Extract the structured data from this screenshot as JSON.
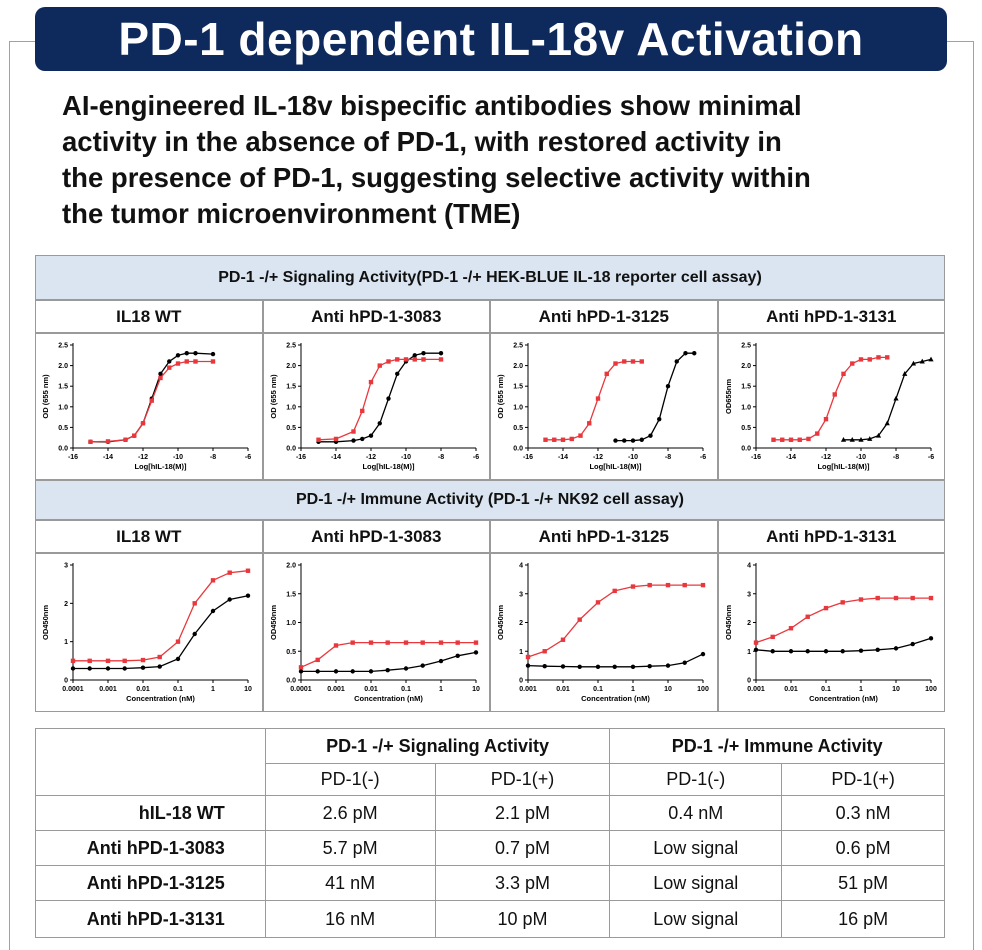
{
  "header": {
    "title": "PD-1 dependent IL-18v Activation",
    "subtitle": [
      "AI-engineered IL-18v bispecific antibodies show minimal",
      "activity in the absence of PD-1, with restored activity in",
      "the presence of PD-1, suggesting selective activity within",
      "the tumor microenvironment (TME)"
    ]
  },
  "panels": [
    {
      "title": "PD-1 -/+ Signaling Activity(PD-1 -/+ HEK-BLUE IL-18 reporter cell assay)",
      "columns": [
        "IL18 WT",
        "Anti hPD-1-3083",
        "Anti hPD-1-3125",
        "Anti hPD-1-3131"
      ],
      "charts": [
        {
          "type": "line",
          "xlabel": "Log[hIL-18(M)]",
          "ylabel": "OD (655 nm)",
          "xlim": [
            -16,
            -6
          ],
          "ylim": [
            0,
            2.5
          ],
          "xticks": [
            -16,
            -14,
            -12,
            -10,
            -8,
            -6
          ],
          "yticks": [
            {
              "value": 0,
              "label": "0.0"
            },
            0.5,
            {
              "value": 1,
              "label": "1.0"
            },
            1.5,
            {
              "value": 2,
              "label": "2.0"
            },
            2.5
          ],
          "series": [
            {
              "color": "#000000",
              "marker": "circle",
              "x": [
                -15,
                -14,
                -13,
                -12.5,
                -12,
                -11.5,
                -11,
                -10.5,
                -10,
                -9.5,
                -9,
                -8
              ],
              "values": [
                0.15,
                0.15,
                0.2,
                0.3,
                0.6,
                1.2,
                1.8,
                2.1,
                2.25,
                2.3,
                2.3,
                2.28
              ]
            },
            {
              "color": "#e8383d",
              "marker": "square",
              "x": [
                -15,
                -14,
                -13,
                -12.5,
                -12,
                -11.5,
                -11,
                -10.5,
                -10,
                -9.5,
                -9,
                -8
              ],
              "values": [
                0.15,
                0.16,
                0.2,
                0.3,
                0.6,
                1.15,
                1.7,
                1.95,
                2.05,
                2.1,
                2.1,
                2.1
              ]
            }
          ]
        },
        {
          "type": "line",
          "xlabel": "Log[hIL-18(M)]",
          "ylabel": "OD (655 nm)",
          "xlim": [
            -16,
            -6
          ],
          "ylim": [
            0,
            2.5
          ],
          "xticks": [
            -16,
            -14,
            -12,
            -10,
            -8,
            -6
          ],
          "yticks": [
            {
              "value": 0,
              "label": "0.0"
            },
            0.5,
            {
              "value": 1,
              "label": "1.0"
            },
            1.5,
            {
              "value": 2,
              "label": "2.0"
            },
            2.5
          ],
          "series": [
            {
              "color": "#000000",
              "marker": "circle",
              "x": [
                -15,
                -14,
                -13,
                -12.5,
                -12,
                -11.5,
                -11,
                -10.5,
                -10,
                -9.5,
                -9,
                -8
              ],
              "values": [
                0.15,
                0.15,
                0.18,
                0.22,
                0.3,
                0.6,
                1.2,
                1.8,
                2.1,
                2.25,
                2.3,
                2.3
              ]
            },
            {
              "color": "#e8383d",
              "marker": "square",
              "x": [
                -15,
                -14,
                -13,
                -12.5,
                -12,
                -11.5,
                -11,
                -10.5,
                -10,
                -9.5,
                -9,
                -8
              ],
              "values": [
                0.2,
                0.22,
                0.4,
                0.9,
                1.6,
                2.0,
                2.1,
                2.15,
                2.15,
                2.15,
                2.15,
                2.15
              ]
            }
          ]
        },
        {
          "type": "line",
          "xlabel": "Log[hIL-18(M)]",
          "ylabel": "OD (655 nm)",
          "xlim": [
            -16,
            -6
          ],
          "ylim": [
            0,
            2.5
          ],
          "xticks": [
            -16,
            -14,
            -12,
            -10,
            -8,
            -6
          ],
          "yticks": [
            {
              "value": 0,
              "label": "0.0"
            },
            0.5,
            {
              "value": 1,
              "label": "1.0"
            },
            1.5,
            {
              "value": 2,
              "label": "2.0"
            },
            2.5
          ],
          "series": [
            {
              "color": "#000000",
              "marker": "circle",
              "x": [
                -11,
                -10.5,
                -10,
                -9.5,
                -9,
                -8.5,
                -8,
                -7.5,
                -7,
                -6.5
              ],
              "values": [
                0.18,
                0.18,
                0.18,
                0.2,
                0.3,
                0.7,
                1.5,
                2.1,
                2.3,
                2.3
              ]
            },
            {
              "color": "#e8383d",
              "marker": "square",
              "x": [
                -15,
                -14.5,
                -14,
                -13.5,
                -13,
                -12.5,
                -12,
                -11.5,
                -11,
                -10.5,
                -10,
                -9.5
              ],
              "values": [
                0.2,
                0.2,
                0.2,
                0.22,
                0.3,
                0.6,
                1.2,
                1.8,
                2.05,
                2.1,
                2.1,
                2.1
              ]
            }
          ]
        },
        {
          "type": "line",
          "xlabel": "Log[hIL-18(M)]",
          "ylabel": "OD655nm",
          "xlim": [
            -16,
            -6
          ],
          "ylim": [
            0,
            2.5
          ],
          "xticks": [
            -16,
            -14,
            -12,
            -10,
            -8,
            -6
          ],
          "yticks": [
            {
              "value": 0,
              "label": "0.0"
            },
            0.5,
            {
              "value": 1,
              "label": "1.0"
            },
            1.5,
            {
              "value": 2,
              "label": "2.0"
            },
            2.5
          ],
          "series": [
            {
              "color": "#000000",
              "marker": "triangle",
              "x": [
                -11,
                -10.5,
                -10,
                -9.5,
                -9,
                -8.5,
                -8,
                -7.5,
                -7,
                -6.5,
                -6
              ],
              "values": [
                0.2,
                0.2,
                0.2,
                0.22,
                0.3,
                0.6,
                1.2,
                1.8,
                2.05,
                2.1,
                2.15
              ]
            },
            {
              "color": "#e8383d",
              "marker": "square",
              "x": [
                -15,
                -14.5,
                -14,
                -13.5,
                -13,
                -12.5,
                -12,
                -11.5,
                -11,
                -10.5,
                -10,
                -9.5,
                -9,
                -8.5
              ],
              "values": [
                0.2,
                0.2,
                0.2,
                0.2,
                0.22,
                0.35,
                0.7,
                1.3,
                1.8,
                2.05,
                2.15,
                2.15,
                2.2,
                2.2
              ]
            }
          ]
        }
      ]
    },
    {
      "title": "PD-1 -/+ Immune Activity (PD-1 -/+ NK92 cell assay)",
      "columns": [
        "IL18 WT",
        "Anti hPD-1-3083",
        "Anti hPD-1-3125",
        "Anti hPD-1-3131"
      ],
      "charts": [
        {
          "type": "line",
          "xscale": "log",
          "xlabel": "Concentration (nM)",
          "ylabel": "OD450nm",
          "xlim": [
            0.0001,
            10
          ],
          "ylim": [
            0,
            3
          ],
          "xticks": [
            0.0001,
            0.001,
            0.01,
            0.1,
            1,
            10
          ],
          "yticks": [
            0,
            1,
            2,
            3
          ],
          "series": [
            {
              "color": "#000000",
              "marker": "circle",
              "x": [
                0.0001,
                0.0003,
                0.001,
                0.003,
                0.01,
                0.03,
                0.1,
                0.3,
                1,
                3,
                10
              ],
              "values": [
                0.3,
                0.3,
                0.3,
                0.3,
                0.32,
                0.35,
                0.55,
                1.2,
                1.8,
                2.1,
                2.2
              ]
            },
            {
              "color": "#e8383d",
              "marker": "square",
              "x": [
                0.0001,
                0.0003,
                0.001,
                0.003,
                0.01,
                0.03,
                0.1,
                0.3,
                1,
                3,
                10
              ],
              "values": [
                0.5,
                0.5,
                0.5,
                0.5,
                0.52,
                0.6,
                1.0,
                2.0,
                2.6,
                2.8,
                2.85
              ]
            }
          ]
        },
        {
          "type": "line",
          "xscale": "log",
          "xlabel": "Concentration (nM)",
          "ylabel": "OD450nm",
          "xlim": [
            0.0001,
            10
          ],
          "ylim": [
            0,
            2
          ],
          "xticks": [
            0.0001,
            0.001,
            0.01,
            0.1,
            1,
            10
          ],
          "yticks": [
            {
              "value": 0,
              "label": "0.0"
            },
            0.5,
            {
              "value": 1,
              "label": "1.0"
            },
            1.5,
            {
              "value": 2,
              "label": "2.0"
            }
          ],
          "series": [
            {
              "color": "#000000",
              "marker": "circle",
              "x": [
                0.0001,
                0.0003,
                0.001,
                0.003,
                0.01,
                0.03,
                0.1,
                0.3,
                1,
                3,
                10
              ],
              "values": [
                0.15,
                0.15,
                0.15,
                0.15,
                0.15,
                0.17,
                0.2,
                0.25,
                0.33,
                0.42,
                0.48
              ]
            },
            {
              "color": "#e8383d",
              "marker": "square",
              "x": [
                0.0001,
                0.0003,
                0.001,
                0.003,
                0.01,
                0.03,
                0.1,
                0.3,
                1,
                3,
                10
              ],
              "values": [
                0.22,
                0.35,
                0.6,
                0.65,
                0.65,
                0.65,
                0.65,
                0.65,
                0.65,
                0.65,
                0.65
              ]
            }
          ]
        },
        {
          "type": "line",
          "xscale": "log",
          "xlabel": "Concentration (nM)",
          "ylabel": "OD450nm",
          "xlim": [
            0.001,
            100
          ],
          "ylim": [
            0,
            4
          ],
          "xticks": [
            0.001,
            0.01,
            0.1,
            1,
            10,
            100
          ],
          "yticks": [
            0,
            1,
            2,
            3,
            4
          ],
          "series": [
            {
              "color": "#000000",
              "marker": "circle",
              "x": [
                0.001,
                0.003,
                0.01,
                0.03,
                0.1,
                0.3,
                1,
                3,
                10,
                30,
                100
              ],
              "values": [
                0.5,
                0.48,
                0.47,
                0.46,
                0.46,
                0.46,
                0.46,
                0.48,
                0.5,
                0.6,
                0.9
              ]
            },
            {
              "color": "#e8383d",
              "marker": "square",
              "x": [
                0.001,
                0.003,
                0.01,
                0.03,
                0.1,
                0.3,
                1,
                3,
                10,
                30,
                100
              ],
              "values": [
                0.8,
                1.0,
                1.4,
                2.1,
                2.7,
                3.1,
                3.25,
                3.3,
                3.3,
                3.3,
                3.3
              ]
            }
          ]
        },
        {
          "type": "line",
          "xscale": "log",
          "xlabel": "Concentration (nM)",
          "ylabel": "OD450nm",
          "xlim": [
            0.001,
            100
          ],
          "ylim": [
            0,
            4
          ],
          "xticks": [
            0.001,
            0.01,
            0.1,
            1,
            10,
            100
          ],
          "yticks": [
            0,
            1,
            2,
            3,
            4
          ],
          "series": [
            {
              "color": "#000000",
              "marker": "circle",
              "x": [
                0.001,
                0.003,
                0.01,
                0.03,
                0.1,
                0.3,
                1,
                3,
                10,
                30,
                100
              ],
              "values": [
                1.05,
                1.0,
                1.0,
                1.0,
                1.0,
                1.0,
                1.02,
                1.05,
                1.1,
                1.25,
                1.45
              ]
            },
            {
              "color": "#e8383d",
              "marker": "square",
              "x": [
                0.001,
                0.003,
                0.01,
                0.03,
                0.1,
                0.3,
                1,
                3,
                10,
                30,
                100
              ],
              "values": [
                1.3,
                1.5,
                1.8,
                2.2,
                2.5,
                2.7,
                2.8,
                2.85,
                2.85,
                2.85,
                2.85
              ]
            }
          ]
        }
      ]
    }
  ],
  "table": {
    "group_headers": [
      "PD-1 -/+ Signaling Activity",
      "PD-1 -/+ Immune Activity"
    ],
    "sub_headers": [
      "PD-1(-)",
      "PD-1(+)",
      "PD-1(-)",
      "PD-1(+)"
    ],
    "rows": [
      [
        "hIL-18 WT",
        "2.6 pM",
        "2.1 pM",
        "0.4 nM",
        "0.3 nM"
      ],
      [
        "Anti hPD-1-3083",
        "5.7 pM",
        "0.7 pM",
        "Low signal",
        "0.6 pM"
      ],
      [
        "Anti hPD-1-3125",
        "41 nM",
        "3.3 pM",
        "Low signal",
        "51 pM"
      ],
      [
        "Anti hPD-1-3131",
        "16 nM",
        "10 pM",
        "Low signal",
        "16 pM"
      ]
    ]
  }
}
